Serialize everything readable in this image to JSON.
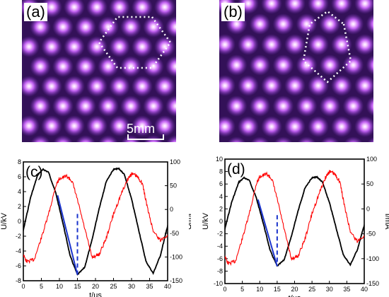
{
  "colors": {
    "photo_bg": "#331158",
    "discharge_glow": "#c060f0",
    "discharge_core": "#ffffff",
    "voltage_curve": "#000000",
    "current_curve": "#ff0000",
    "annotation": "#1a33cc"
  },
  "photos": [
    {
      "label": "(a)",
      "scale_bar": "5mm",
      "pattern": "hexagonal",
      "cell_marker": "white dotted hexagon"
    },
    {
      "label": "(b)",
      "scale_bar": "",
      "pattern": "hexagonal",
      "cell_marker": "white dotted hexagon"
    }
  ],
  "chart_data": [
    {
      "type": "line",
      "panel_label": "(c)",
      "xlabel": "t/us",
      "ylabel_left": "U/kV",
      "ylabel_right": "I/mA",
      "xlim": [
        0,
        40
      ],
      "ylim_left": [
        -8,
        8
      ],
      "ylim_right": [
        -150,
        100
      ],
      "x_ticks": [
        "0",
        "5",
        "10",
        "15",
        "20",
        "25",
        "30",
        "35",
        "40"
      ],
      "y_left_ticks": [
        "8",
        "6",
        "4",
        "2",
        "0",
        "-2",
        "-4",
        "-6",
        "-8"
      ],
      "y_right_ticks": [
        "100",
        "50",
        "0",
        "-50",
        "-100",
        "-150"
      ],
      "series": [
        {
          "axis": "left",
          "color": "#000000",
          "x": [
            -0.5,
            0,
            2,
            4,
            5.5,
            7,
            9,
            11,
            13,
            15,
            17,
            19,
            21,
            23,
            25,
            26.5,
            28,
            30,
            32,
            34,
            36,
            38,
            40,
            40.5
          ],
          "y": [
            -2.3,
            -1.2,
            3.2,
            6.3,
            7.0,
            6.6,
            3.8,
            -0.3,
            -4.7,
            -7.2,
            -6.2,
            -2.6,
            1.7,
            5.4,
            7.0,
            7.1,
            6.3,
            3.0,
            -1.2,
            -5.4,
            -7.0,
            -4.6,
            -0.6,
            0.5
          ]
        },
        {
          "axis": "right",
          "color": "#ff0000",
          "x": [
            -0.5,
            1,
            3,
            5,
            7,
            9,
            10,
            12,
            13.5,
            15,
            17,
            19,
            21,
            23,
            25,
            27,
            29,
            30,
            31.5,
            33,
            34.5,
            36,
            38,
            40.5
          ],
          "y": [
            -90,
            -110,
            -105,
            -60,
            -10,
            50,
            65,
            70,
            60,
            20,
            -40,
            -100,
            -95,
            -60,
            -10,
            30,
            65,
            75,
            70,
            55,
            0,
            -45,
            -65,
            -50
          ]
        }
      ],
      "annotations": [
        {
          "type": "solid-line",
          "x": [
            9.5,
            15
          ],
          "y_left": [
            3.5,
            -7.2
          ]
        },
        {
          "type": "dashed-line",
          "x": [
            15,
            15
          ],
          "y_left": [
            1.0,
            -7.2
          ]
        }
      ]
    },
    {
      "type": "line",
      "panel_label": "(d)",
      "xlabel": "t/us",
      "ylabel_left": "U/kV",
      "ylabel_right": "I/mA",
      "xlim": [
        0,
        40
      ],
      "ylim_left": [
        -10,
        10
      ],
      "ylim_right": [
        -150,
        100
      ],
      "x_ticks": [
        "0",
        "5",
        "10",
        "15",
        "20",
        "25",
        "30",
        "35",
        "40"
      ],
      "y_left_ticks": [
        "10",
        "8",
        "6",
        "4",
        "2",
        "0",
        "-2",
        "-4",
        "-6",
        "-8",
        "-10"
      ],
      "y_right_ticks": [
        "100",
        "50",
        "0",
        "-50",
        "-100",
        "-150"
      ],
      "series": [
        {
          "axis": "left",
          "color": "#000000",
          "x": [
            -0.5,
            0,
            2,
            4,
            5.5,
            7,
            9,
            11,
            13,
            15,
            17,
            19,
            21,
            23,
            25,
            26.5,
            28,
            30,
            32,
            34,
            36,
            38,
            40,
            40.5
          ],
          "y": [
            -2.3,
            -1.2,
            3.2,
            6.3,
            7.0,
            6.6,
            3.8,
            -0.3,
            -4.7,
            -7.2,
            -6.2,
            -2.6,
            1.7,
            5.4,
            7.0,
            7.1,
            6.3,
            3.0,
            -1.2,
            -5.4,
            -7.0,
            -4.6,
            -0.6,
            0.5
          ]
        },
        {
          "axis": "right",
          "color": "#ff0000",
          "x": [
            -0.5,
            1,
            3,
            5,
            7,
            9,
            10,
            12,
            13.5,
            15,
            17,
            19,
            21,
            23,
            25,
            27,
            29,
            30,
            31.5,
            33,
            34.5,
            36,
            38,
            40.5
          ],
          "y": [
            -90,
            -110,
            -105,
            -60,
            -10,
            50,
            65,
            70,
            60,
            20,
            -40,
            -100,
            -95,
            -60,
            -10,
            30,
            65,
            75,
            70,
            55,
            0,
            -45,
            -65,
            -50
          ]
        }
      ],
      "annotations": [
        {
          "type": "solid-line",
          "x": [
            9.5,
            15
          ],
          "y_left": [
            3.5,
            -7.2
          ]
        },
        {
          "type": "dashed-line",
          "x": [
            15,
            15
          ],
          "y_left": [
            1.0,
            -7.2
          ]
        }
      ]
    }
  ]
}
